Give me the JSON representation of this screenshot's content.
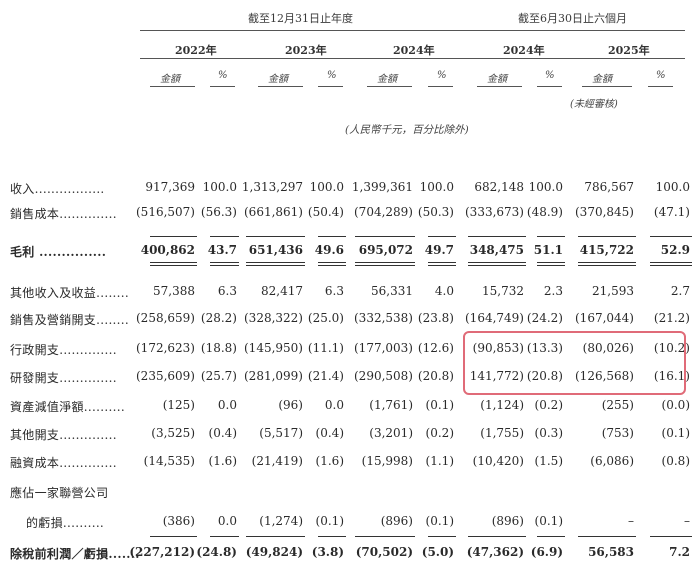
{
  "header": {
    "group1_title": "截至12月31日止年度",
    "group2_title": "截至6月30日止六個月",
    "years": [
      "2022年",
      "2023年",
      "2024年",
      "2024年",
      "2025年"
    ],
    "amount_label": "金額",
    "percent_label": "%",
    "unaudited": "(未經審核)",
    "unit_note": "(人民幣千元，百分比除外)"
  },
  "rows": [
    {
      "label": "收入.................",
      "values": [
        "917,369",
        "100.0",
        "1,313,297",
        "100.0",
        "1,399,361",
        "100.0",
        "682,148",
        "100.0",
        "786,567",
        "100.0"
      ]
    },
    {
      "label": "銷售成本..............",
      "values": [
        "(516,507)",
        "(56.3)",
        "(661,861)",
        "(50.4)",
        "(704,289)",
        "(50.3)",
        "(333,673)",
        "(48.9)",
        "(370,845)",
        "(47.1)"
      ]
    },
    {
      "label": "毛利 ...............",
      "values": [
        "400,862",
        "43.7",
        "651,436",
        "49.6",
        "695,072",
        "49.7",
        "348,475",
        "51.1",
        "415,722",
        "52.9"
      ]
    },
    {
      "label": "其他收入及收益........",
      "values": [
        "57,388",
        "6.3",
        "82,417",
        "6.3",
        "56,331",
        "4.0",
        "15,732",
        "2.3",
        "21,593",
        "2.7"
      ]
    },
    {
      "label": "銷售及營銷開支........",
      "values": [
        "(258,659)",
        "(28.2)",
        "(328,322)",
        "(25.0)",
        "(332,538)",
        "(23.8)",
        "(164,749)",
        "(24.2)",
        "(167,044)",
        "(21.2)"
      ]
    },
    {
      "label": "行政開支..............",
      "values": [
        "(172,623)",
        "(18.8)",
        "(145,950)",
        "(11.1)",
        "(177,003)",
        "(12.6)",
        "(90,853)",
        "(13.3)",
        "(80,026)",
        "(10.2)"
      ]
    },
    {
      "label": "研發開支..............",
      "values": [
        "(235,609)",
        "(25.7)",
        "(281,099)",
        "(21.4)",
        "(290,508)",
        "(20.8)",
        "141,772)",
        "(20.8)",
        "(126,568)",
        "(16.1)"
      ]
    },
    {
      "label": "資產減值淨額..........",
      "values": [
        "(125)",
        "0.0",
        "(96)",
        "0.0",
        "(1,761)",
        "(0.1)",
        "(1,124)",
        "(0.2)",
        "(255)",
        "(0.0)"
      ]
    },
    {
      "label": "其他開支..............",
      "values": [
        "(3,525)",
        "(0.4)",
        "(5,517)",
        "(0.4)",
        "(3,201)",
        "(0.2)",
        "(1,755)",
        "(0.3)",
        "(753)",
        "(0.1)"
      ]
    },
    {
      "label": "融資成本..............",
      "values": [
        "(14,535)",
        "(1.6)",
        "(21,419)",
        "(1.6)",
        "(15,998)",
        "(1.1)",
        "(10,420)",
        "(1.5)",
        "(6,086)",
        "(0.8)"
      ]
    },
    {
      "label": "應佔一家聯營公司",
      "values": []
    },
    {
      "label": "的虧損..........",
      "values": [
        "(386)",
        "0.0",
        "(1,274)",
        "(0.1)",
        "(896)",
        "(0.1)",
        "(896)",
        "(0.1)",
        "–",
        "–"
      ]
    },
    {
      "label": "除稅前利潤／虧損.......",
      "values": [
        "(227,212)",
        "(24.8)",
        "(49,824)",
        "(3.8)",
        "(70,502)",
        "(5.0)",
        "(47,362)",
        "(6.9)",
        "56,583",
        "7.2"
      ]
    }
  ]
}
